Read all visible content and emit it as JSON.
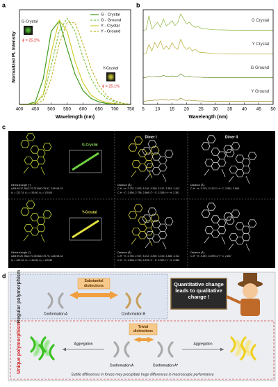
{
  "chart_data": [
    {
      "type": "line",
      "panel": "a",
      "xlabel": "Wavelength (nm)",
      "ylabel": "Normalized PL Intensity",
      "x": [
        400,
        425,
        450,
        475,
        500,
        525,
        550,
        575,
        600,
        625,
        650,
        675,
        700,
        725,
        750
      ],
      "xlim": [
        400,
        750
      ],
      "xticks": [
        400,
        450,
        500,
        550,
        600,
        650,
        700,
        750
      ],
      "ylim": [
        0,
        1.1
      ],
      "legend": "upper right",
      "annotations": [
        "G-Crystal",
        "ϕ = 25.2%",
        "Y-Crystal",
        "ϕ = 25.1%"
      ],
      "series": [
        {
          "name": "G - Crystal",
          "color": "#3f9b1c",
          "dash": "solid",
          "values": [
            0,
            0,
            0.03,
            0.3,
            0.85,
            0.97,
            0.65,
            0.35,
            0.16,
            0.07,
            0.03,
            0.01,
            0,
            0,
            0
          ]
        },
        {
          "name": "G - Ground",
          "color": "#7cc242",
          "dash": "dashed",
          "values": [
            0,
            0,
            0.01,
            0.1,
            0.45,
            0.85,
            1.0,
            0.85,
            0.55,
            0.3,
            0.15,
            0.07,
            0.03,
            0.01,
            0
          ]
        },
        {
          "name": "Y - Crystal",
          "color": "#cfcf3a",
          "dash": "solid",
          "values": [
            0,
            0,
            0.01,
            0.12,
            0.6,
            0.98,
            0.85,
            0.5,
            0.25,
            0.11,
            0.05,
            0.02,
            0.01,
            0,
            0
          ]
        },
        {
          "name": "Y - Ground",
          "color": "#bdb832",
          "dash": "dashed",
          "values": [
            0,
            0,
            0,
            0.05,
            0.3,
            0.7,
            0.95,
            0.95,
            0.7,
            0.42,
            0.22,
            0.1,
            0.04,
            0.015,
            0
          ]
        }
      ]
    },
    {
      "type": "line",
      "panel": "b",
      "offset": true,
      "xlabel": "Wavelength (nm)",
      "x": [
        5,
        6,
        7,
        8,
        9,
        10,
        11,
        12,
        13,
        14,
        15,
        16,
        17,
        18,
        19,
        20,
        21,
        22,
        23,
        24,
        25,
        26,
        27,
        28,
        29,
        30,
        35,
        40,
        45,
        50
      ],
      "xlim": [
        5,
        50
      ],
      "xticks": [
        5,
        10,
        15,
        20,
        25,
        30,
        35,
        40,
        45,
        50
      ],
      "ylim": [
        0,
        1
      ],
      "series": [
        {
          "name": "G Crystal",
          "color": "#8ab43a",
          "values": [
            0.02,
            0.05,
            0.9,
            0.1,
            0.3,
            0.5,
            0.2,
            0.7,
            0.3,
            0.4,
            0.6,
            0.3,
            0.5,
            1.0,
            0.7,
            0.4,
            0.5,
            0.3,
            0.2,
            0.25,
            0.15,
            0.1,
            0.1,
            0.08,
            0.06,
            0.05,
            0.03,
            0.02,
            0.02,
            0.02
          ]
        },
        {
          "name": "Y Crystal",
          "color": "#b5a92e",
          "values": [
            0.02,
            0.05,
            0.6,
            0.2,
            0.7,
            0.4,
            0.8,
            0.3,
            0.5,
            0.3,
            0.7,
            0.4,
            0.3,
            0.9,
            0.5,
            0.3,
            0.4,
            0.2,
            0.3,
            0.15,
            0.1,
            0.1,
            0.08,
            0.06,
            0.05,
            0.04,
            0.03,
            0.02,
            0.02,
            0.02
          ]
        },
        {
          "name": "G Ground",
          "color": "#6a8f2a",
          "values": [
            0.02,
            0.03,
            0.1,
            0.05,
            0.08,
            0.1,
            0.08,
            0.15,
            0.1,
            0.1,
            0.12,
            0.1,
            0.1,
            0.25,
            0.12,
            0.08,
            0.1,
            0.06,
            0.05,
            0.05,
            0.04,
            0.03,
            0.03,
            0.02,
            0.02,
            0.02,
            0.02,
            0.02,
            0.02,
            0.02
          ]
        },
        {
          "name": "Y Ground",
          "color": "#9a8c2a",
          "values": [
            0.02,
            0.03,
            0.08,
            0.06,
            0.1,
            0.08,
            0.12,
            0.1,
            0.1,
            0.08,
            0.14,
            0.1,
            0.08,
            0.22,
            0.1,
            0.07,
            0.09,
            0.05,
            0.06,
            0.04,
            0.04,
            0.03,
            0.03,
            0.02,
            0.02,
            0.02,
            0.02,
            0.02,
            0.02,
            0.02
          ]
        }
      ]
    }
  ],
  "panel_c": {
    "label": "c",
    "headers": [
      "Dimer I",
      "Dimer II"
    ],
    "rows": [
      {
        "crystal": "G-Crystal",
        "angle_title": "Dihedral angle (°):",
        "angles": "A&B:59.37, B&C:70.37,B&D:78.87, C&D:54.22",
        "thetas": "θ₁ = 122.74, θ₂ = 116.60, θ₃ = 120.65",
        "dimer1_title": "Distance (Å):",
        "dimer1_lines": [
          "C-H···π: 2.752, 2.923, 3.016, 3.259, 3.317, 3.381, 3.412",
          "C-H···C: 2.656, 2.758, 2.868; C···C: 3.355; H···H: 2.381"
        ],
        "dimer2_title": "Distance (Å):",
        "dimer2_lines": [
          "C-H···π: 3.379, 3.417;C-H···C: 2.851, 2.896"
        ]
      },
      {
        "crystal": "Y-Crystal",
        "angle_title": "Dihedral angle (°):",
        "angles": "A&B:59.20, B&C:70.39,B&D:78.75, C&D:54.32",
        "thetas": "θ₁ = 123.10, θ₂ = 116.05, θ₃ = 120.86",
        "dimer1_title": "Distance (Å):",
        "dimer1_lines": [
          "C-H···π: 2.755, 2.927, 3.012, 3.259, 3.319, 3.386, 3.411",
          "C-H···C: 2.656, 2.750, 2.878; C···C: 3.357; H···H: 2.380"
        ],
        "dimer2_title": "Distance (Å):",
        "dimer2_lines": [
          "C-H···π: 3.387, 3.399;C-H···C: 2.847"
        ]
      }
    ]
  },
  "panel_d": {
    "label": "d",
    "regular": "Regular polymorphism",
    "substantial": "Substantial distinctions",
    "conf_a": "Conformation A",
    "conf_b": "Conformation B",
    "board": "Quantitative change leads to qualitative change !",
    "unique": "Unique polymorphism",
    "trivial": "Trivial distinctions",
    "aggregation_left": "Aggregation",
    "aggregation_right": "Aggregation",
    "conf_a2": "Conformation A",
    "conf_a_star": "Conformation A*",
    "footer": "Subtle differences in forces may precipitate huge differences in macroscopic performance"
  }
}
